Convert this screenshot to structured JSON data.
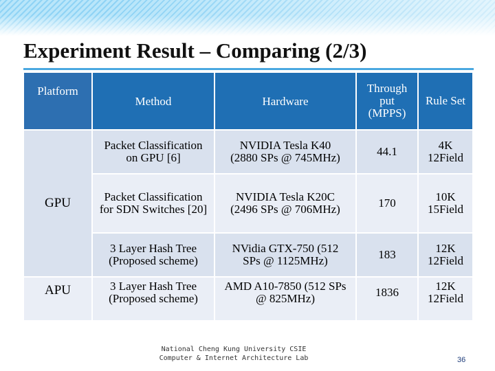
{
  "title": "Experiment Result – Comparing (2/3)",
  "table": {
    "headers": {
      "platform": "Platform",
      "method": "Method",
      "hardware": "Hardware",
      "throughput_line1": "Through",
      "throughput_line2": "put",
      "throughput_line3": "(MPPS)",
      "ruleset": "Rule Set"
    },
    "platforms": [
      "GPU",
      "APU"
    ],
    "rows": [
      {
        "method_line1": "Packet Classification",
        "method_line2": "on GPU [6]",
        "hardware_line1": "NVIDIA Tesla K40",
        "hardware_line2": "(2880 SPs @ 745MHz)",
        "throughput": "44.1",
        "ruleset_line1": "4K",
        "ruleset_line2": "12Field"
      },
      {
        "method_line1": "Packet Classification",
        "method_line2": "for SDN Switches [20]",
        "hardware_line1": "NVIDIA Tesla K20C",
        "hardware_line2": "(2496 SPs @ 706MHz)",
        "throughput": "170",
        "ruleset_line1": "10K",
        "ruleset_line2": "15Field"
      },
      {
        "method_line1": "3 Layer Hash Tree",
        "method_line2": "(Proposed scheme)",
        "hardware_line1": "NVidia GTX-750 (512",
        "hardware_line2": "SPs @ 1125MHz)",
        "throughput": "183",
        "ruleset_line1": "12K",
        "ruleset_line2": "12Field"
      },
      {
        "method_line1": "3 Layer Hash Tree",
        "method_line2": "(Proposed scheme)",
        "hardware_line1": "AMD A10-7850 (512 SPs",
        "hardware_line2": "@ 825MHz)",
        "throughput": "1836",
        "ruleset_line1": "12K",
        "ruleset_line2": "12Field"
      }
    ]
  },
  "footer": {
    "line1": "National Cheng Kung University CSIE",
    "line2": "Computer & Internet Architecture Lab"
  },
  "page_number": "36",
  "colors": {
    "header_bg": "#1f6fb4",
    "row_bg": "#d9e1ee",
    "row_alt_bg": "#eaeef6",
    "accent_rule": "#4aa8e0"
  }
}
